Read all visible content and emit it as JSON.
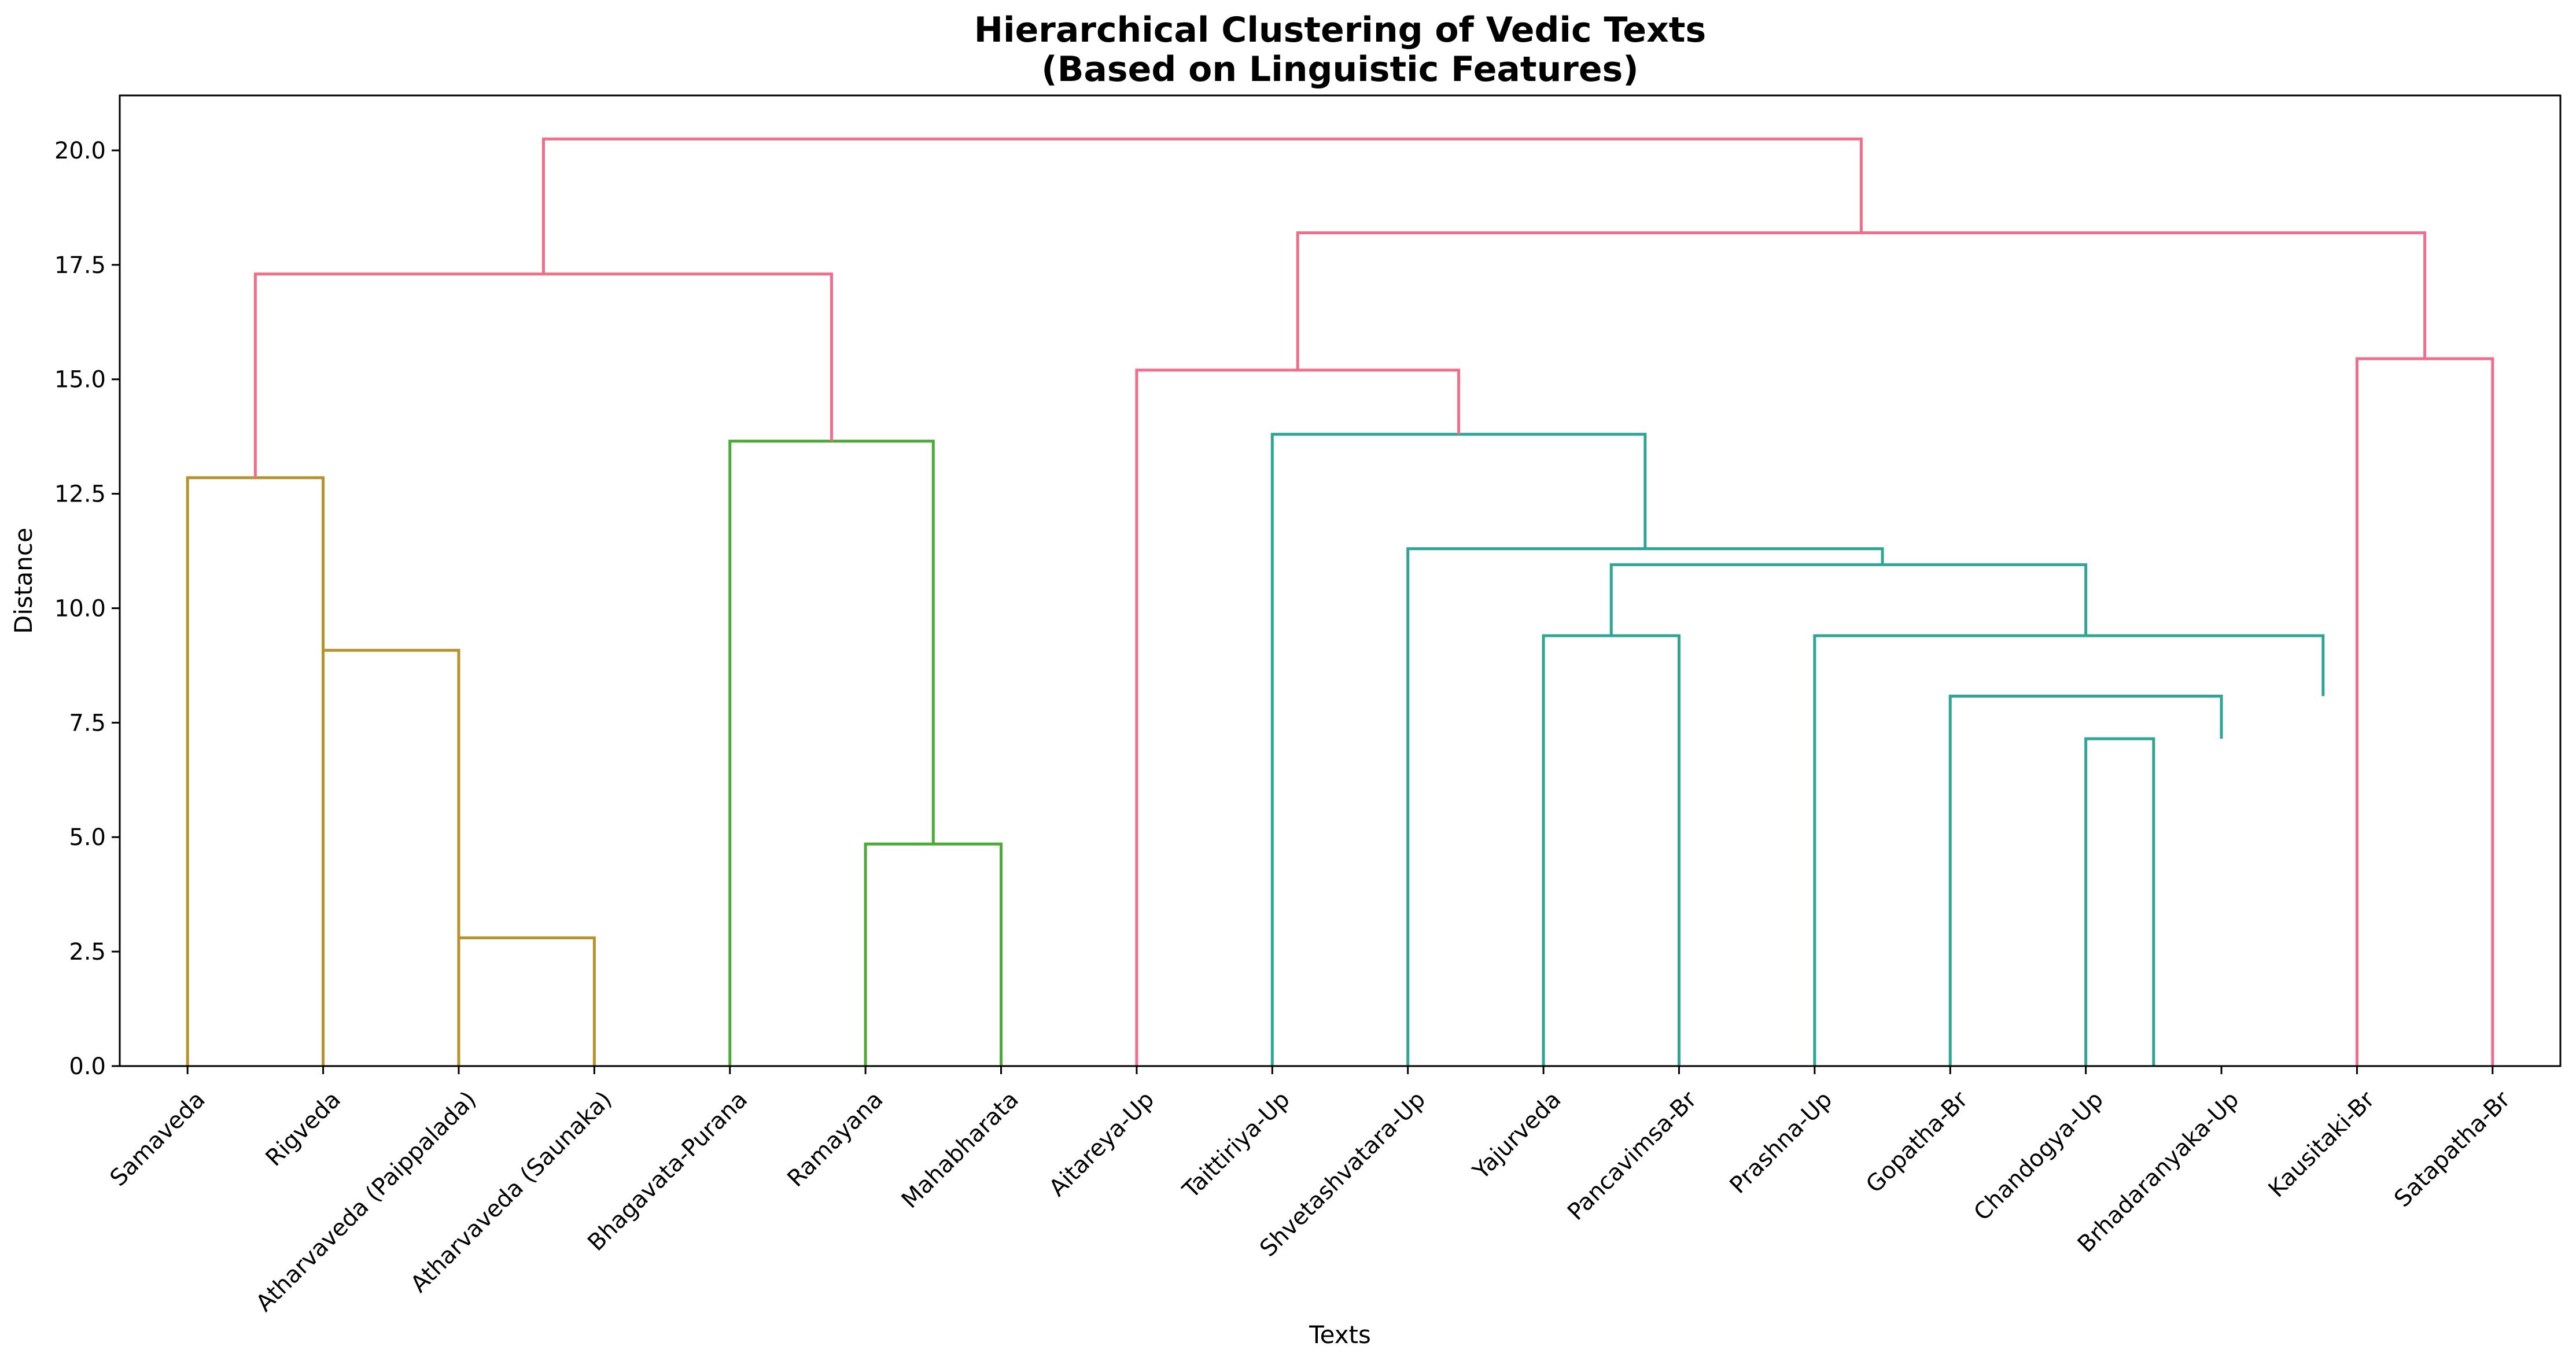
{
  "chart_data": {
    "type": "dendrogram",
    "title": "Hierarchical Clustering of Vedic Texts\n(Based on Linguistic Features)",
    "xlabel": "Texts",
    "ylabel": "Distance",
    "ylim": [
      0,
      21.2
    ],
    "yticks": [
      "0.0",
      "2.5",
      "5.0",
      "7.5",
      "10.0",
      "12.5",
      "15.0",
      "17.5",
      "20.0"
    ],
    "grid": false,
    "leaves": [
      "Samaveda",
      "Rigveda",
      "Atharvaveda (Paippalada)",
      "Atharvaveda (Saunaka)",
      "Bhagavata-Purana",
      "Ramayana",
      "Mahabharata",
      "Aitareya-Up",
      "Taittiriya-Up",
      "Shvetashvatara-Up",
      "Yajurveda",
      "Pancavimsa-Br",
      "Prashna-Up",
      "Gopatha-Br",
      "Chandogya-Up",
      "Brhadaranyaka-Up",
      "Kausitaki-Br",
      "Satapatha-Br"
    ],
    "colors": {
      "olive": "#b5922e",
      "green": "#4aab36",
      "teal": "#2ea597",
      "pink": "#f06e8a"
    },
    "merges": [
      {
        "x": [
          0.5,
          0.5,
          1.5,
          1.5
        ],
        "y": [
          0.0,
          12.85,
          12.85,
          9.08
        ],
        "color": "olive"
      },
      {
        "x": [
          1.5,
          1.5,
          2.5,
          2.5
        ],
        "y": [
          0.0,
          9.08,
          9.08,
          2.8
        ],
        "color": "olive"
      },
      {
        "x": [
          2.5,
          2.5,
          3.5,
          3.5
        ],
        "y": [
          0.0,
          2.8,
          2.8,
          0.0
        ],
        "color": "olive"
      },
      {
        "x": [
          4.5,
          4.5,
          6.0,
          6.0
        ],
        "y": [
          0.0,
          13.65,
          13.65,
          4.85
        ],
        "color": "green"
      },
      {
        "x": [
          5.5,
          5.5,
          6.5,
          6.5
        ],
        "y": [
          0.0,
          4.85,
          4.85,
          0.0
        ],
        "color": "green"
      },
      {
        "x": [
          1.0,
          1.0,
          5.25,
          5.25
        ],
        "y": [
          12.85,
          17.3,
          17.3,
          13.65
        ],
        "color": "pink"
      },
      {
        "x": [
          8.5,
          8.5,
          11.25,
          11.25
        ],
        "y": [
          0.0,
          13.8,
          13.8,
          11.3
        ],
        "color": "teal"
      },
      {
        "x": [
          9.5,
          9.5,
          13.0,
          13.0
        ],
        "y": [
          0.0,
          11.3,
          11.3,
          10.95
        ],
        "color": "teal"
      },
      {
        "x": [
          10.5,
          10.5,
          11.5,
          11.5
        ],
        "y": [
          0.0,
          9.4,
          9.4,
          0.0
        ],
        "color": "teal"
      },
      {
        "x": [
          11.0,
          11.0,
          14.5,
          14.5
        ],
        "y": [
          9.4,
          10.95,
          10.95,
          9.4
        ],
        "color": "teal"
      },
      {
        "x": [
          12.5,
          12.5,
          16.25,
          16.25
        ],
        "y": [
          0.0,
          9.4,
          9.4,
          8.08
        ],
        "color": "teal"
      },
      {
        "x": [
          13.5,
          13.5,
          15.5,
          15.5
        ],
        "y": [
          0.0,
          8.08,
          8.08,
          7.15
        ],
        "color": "teal"
      },
      {
        "x": [
          14.5,
          14.5,
          15.0,
          15.0
        ],
        "y": [
          0.0,
          7.15,
          7.15,
          0.0
        ],
        "color": "teal"
      },
      {
        "x": [
          7.5,
          7.5,
          9.875,
          9.875
        ],
        "y": [
          0.0,
          15.2,
          15.2,
          13.8
        ],
        "color": "pink"
      },
      {
        "x": [
          16.5,
          16.5,
          17.5,
          17.5
        ],
        "y": [
          0.0,
          15.45,
          15.45,
          0.0
        ],
        "color": "pink"
      },
      {
        "x": [
          8.6875,
          8.6875,
          17.0,
          17.0
        ],
        "y": [
          15.2,
          18.2,
          18.2,
          15.45
        ],
        "color": "pink"
      },
      {
        "x": [
          3.125,
          3.125,
          12.84375,
          12.84375
        ],
        "y": [
          17.3,
          20.25,
          20.25,
          18.2
        ],
        "color": "pink"
      }
    ]
  }
}
